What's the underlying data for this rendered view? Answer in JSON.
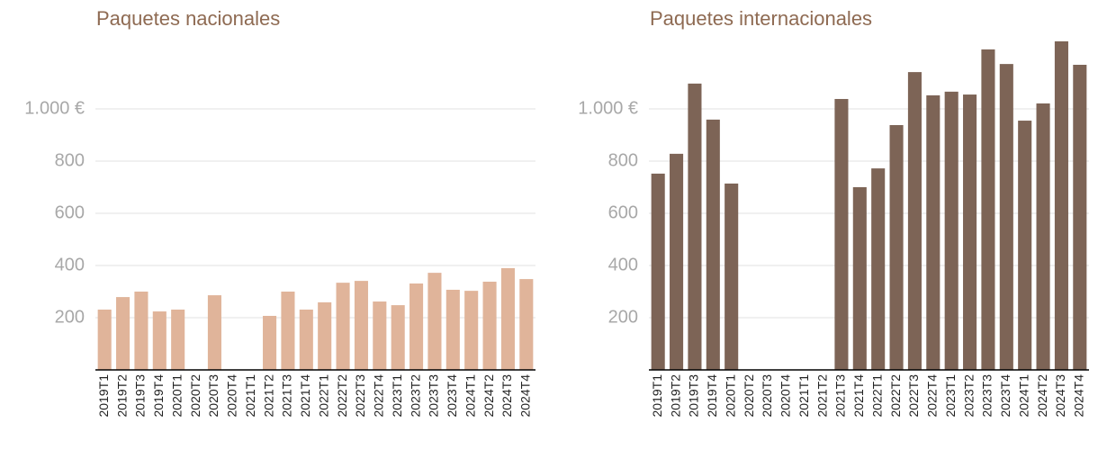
{
  "chart_data": [
    {
      "type": "bar",
      "title": "Paquetes nacionales",
      "color": "#e0b49a",
      "categories": [
        "2019T1",
        "2019T2",
        "2019T3",
        "2019T4",
        "2020T1",
        "2020T2",
        "2020T3",
        "2020T4",
        "2021T1",
        "2021T2",
        "2021T3",
        "2021T4",
        "2022T1",
        "2022T2",
        "2022T3",
        "2022T4",
        "2023T1",
        "2023T2",
        "2023T3",
        "2023T4",
        "2024T1",
        "2024T2",
        "2024T3",
        "2024T4"
      ],
      "values": [
        231,
        279,
        300,
        224,
        231,
        null,
        286,
        null,
        null,
        207,
        300,
        231,
        259,
        334,
        341,
        262,
        248,
        331,
        372,
        307,
        303,
        338,
        390,
        348
      ],
      "ylim": [
        0,
        1300
      ],
      "yticks": [
        200,
        400,
        600,
        800,
        {
          "value": 1000,
          "label": "1.000 €"
        }
      ],
      "grid": true
    },
    {
      "type": "bar",
      "title": "Paquetes internacionales",
      "color": "#7d6456",
      "categories": [
        "2019T1",
        "2019T2",
        "2019T3",
        "2019T4",
        "2020T1",
        "2020T2",
        "2020T3",
        "2020T4",
        "2021T1",
        "2021T2",
        "2021T3",
        "2021T4",
        "2022T1",
        "2022T2",
        "2022T3",
        "2022T4",
        "2023T1",
        "2023T2",
        "2023T3",
        "2023T4",
        "2024T1",
        "2024T2",
        "2024T3",
        "2024T4"
      ],
      "values": [
        752,
        828,
        1097,
        959,
        714,
        null,
        null,
        null,
        null,
        null,
        1038,
        700,
        772,
        938,
        1141,
        1052,
        1066,
        1055,
        1228,
        1172,
        955,
        1021,
        1259,
        1169
      ],
      "ylim": [
        0,
        1300
      ],
      "yticks": [
        200,
        400,
        600,
        800,
        {
          "value": 1000,
          "label": "1.000 €"
        }
      ],
      "grid": true
    }
  ]
}
